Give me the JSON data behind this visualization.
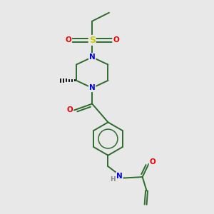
{
  "bg_color": "#e8e8e8",
  "bond_color": "#2d6b2d",
  "bond_width": 1.4,
  "atom_N": "#0000ee",
  "atom_O": "#ee0000",
  "atom_S": "#cccc00",
  "atom_H": "#888888",
  "atom_C": "#000000",
  "font_size": 7.5,
  "fig_w": 3.0,
  "fig_h": 3.0,
  "dpi": 100,
  "xlim": [
    0,
    10
  ],
  "ylim": [
    0,
    10
  ]
}
